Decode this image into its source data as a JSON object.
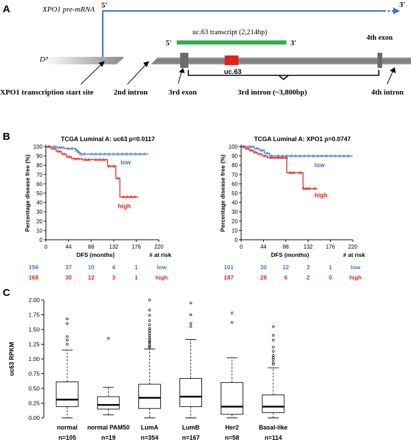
{
  "colors": {
    "blue": "#3f74c4",
    "red": "#e0241b",
    "green": "#2db34a",
    "gray": "#7f7f7f",
    "navy": "#2a3f9f",
    "black": "#000000"
  },
  "panel_a": {
    "label": "A",
    "pre_mrna": "XPO1 pre-mRNA",
    "five_prime_top": "5'",
    "three_prime_top": "3'",
    "transcript_label": "uc.63 transcript (2,214bp)",
    "transcript_5": "5'",
    "transcript_3": "3'",
    "fourth_exon_top": "4th exon",
    "dna_label": "DNA (XPO1 gene)",
    "uc63": "uc.63",
    "tss_label": "XPO1 transcription start site",
    "second_intron": "2nd intron",
    "third_exon": "3rd exon",
    "third_intron": "3rd intron (~3,800bp)",
    "fourth_intron": "4th intron"
  },
  "panel_b": {
    "label": "B"
  },
  "panel_c": {
    "label": "C"
  },
  "chart_data": [
    {
      "type": "line",
      "title": "TCGA Luminal A: uc63 p=0.0117",
      "xlabel": "DFS (months)",
      "ylabel": "Percentage disease free (%)",
      "xticks": [
        "0",
        "44",
        "88",
        "132",
        "176",
        "220"
      ],
      "yticks": [
        "0",
        "10",
        "20",
        "30",
        "40",
        "50",
        "60",
        "70",
        "80",
        "90",
        "100"
      ],
      "xlim": [
        0,
        220
      ],
      "ylim": [
        0,
        100
      ],
      "series": [
        {
          "name": "low",
          "color": "blue",
          "x": [
            0,
            12,
            22,
            36,
            58,
            62,
            66,
            70,
            80,
            200
          ],
          "y": [
            100,
            100,
            99,
            98,
            96,
            94,
            92,
            92,
            92,
            92
          ]
        },
        {
          "name": "high",
          "color": "red",
          "x": [
            0,
            10,
            20,
            30,
            40,
            50,
            70,
            90,
            120,
            128,
            136,
            144,
            180
          ],
          "y": [
            100,
            98,
            95,
            92,
            89,
            87,
            86,
            86,
            79,
            79,
            66,
            46,
            46
          ]
        }
      ],
      "risk_header": "# at risk",
      "risk_table": [
        {
          "label": "low",
          "color": "blue",
          "counts": [
            "156",
            "37",
            "10",
            "4",
            "1"
          ]
        },
        {
          "label": "high",
          "color": "red",
          "counts": [
            "168",
            "30",
            "12",
            "3",
            "1"
          ]
        }
      ]
    },
    {
      "type": "line",
      "title": "TCGA Luminal A: XPO1 p=0.0747",
      "xlabel": "DFS (months)",
      "ylabel": "Percentage disease free (%)",
      "xticks": [
        "0",
        "44",
        "88",
        "132",
        "176",
        "220"
      ],
      "yticks": [
        "0",
        "10",
        "20",
        "30",
        "40",
        "50",
        "60",
        "70",
        "80",
        "90",
        "100"
      ],
      "xlim": [
        0,
        220
      ],
      "ylim": [
        0,
        100
      ],
      "series": [
        {
          "name": "low",
          "color": "blue",
          "x": [
            0,
            12,
            26,
            36,
            46,
            56,
            64,
            220
          ],
          "y": [
            100,
            100,
            98,
            96,
            93,
            90,
            90,
            90
          ]
        },
        {
          "name": "high",
          "color": "red",
          "x": [
            0,
            8,
            16,
            24,
            32,
            42,
            52,
            88,
            90,
            110,
            122,
            124,
            140,
            150
          ],
          "y": [
            100,
            98,
            96,
            94,
            92,
            90,
            88,
            88,
            72,
            72,
            55,
            55,
            55,
            55
          ]
        }
      ],
      "risk_header": "# at risk",
      "risk_table": [
        {
          "label": "low",
          "color": "blue",
          "counts": [
            "101",
            "30",
            "12",
            "3",
            "1"
          ]
        },
        {
          "label": "high",
          "color": "red",
          "counts": [
            "187",
            "28",
            "6",
            "2",
            "0"
          ]
        }
      ]
    },
    {
      "type": "box",
      "ylabel": "uc63 RPKM",
      "yticks": [
        "0.00",
        "0.25",
        "0.50",
        "0.75",
        "1.00",
        "1.25",
        "1.50",
        "1.75",
        "2.00"
      ],
      "ylim": [
        0,
        2.0
      ],
      "categories": [
        "normal",
        "normal PAM50",
        "LumA",
        "LumB",
        "Her2",
        "Basal-like"
      ],
      "n_labels": [
        "n=105",
        "n=19",
        "n=354",
        "n=167",
        "n=58",
        "n=114"
      ],
      "boxes": [
        {
          "min": 0.0,
          "q1": 0.19,
          "median": 0.31,
          "q3": 0.61,
          "max": 1.15,
          "outliers": [
            1.25,
            1.32,
            1.38,
            1.6,
            1.68
          ]
        },
        {
          "min": 0.05,
          "q1": 0.15,
          "median": 0.22,
          "q3": 0.36,
          "max": 0.52,
          "outliers": [
            1.35
          ]
        },
        {
          "min": 0.0,
          "q1": 0.16,
          "median": 0.34,
          "q3": 0.57,
          "max": 1.17,
          "outliers": [
            1.2,
            1.22,
            1.25,
            1.28,
            1.3,
            1.33,
            1.36,
            1.4,
            1.44,
            1.48,
            1.52,
            1.58,
            1.65,
            1.74,
            1.83,
            2.0
          ]
        },
        {
          "min": 0.0,
          "q1": 0.19,
          "median": 0.36,
          "q3": 0.67,
          "max": 1.33,
          "outliers": [
            1.55,
            1.6,
            1.75,
            1.95
          ]
        },
        {
          "min": 0.0,
          "q1": 0.06,
          "median": 0.19,
          "q3": 0.6,
          "max": 1.02,
          "outliers": [
            1.62,
            1.78
          ]
        },
        {
          "min": 0.0,
          "q1": 0.09,
          "median": 0.19,
          "q3": 0.39,
          "max": 0.85,
          "outliers": [
            0.91,
            0.94,
            0.99,
            1.02,
            1.06,
            1.13,
            1.2,
            1.32,
            1.4,
            1.55
          ]
        }
      ]
    }
  ]
}
